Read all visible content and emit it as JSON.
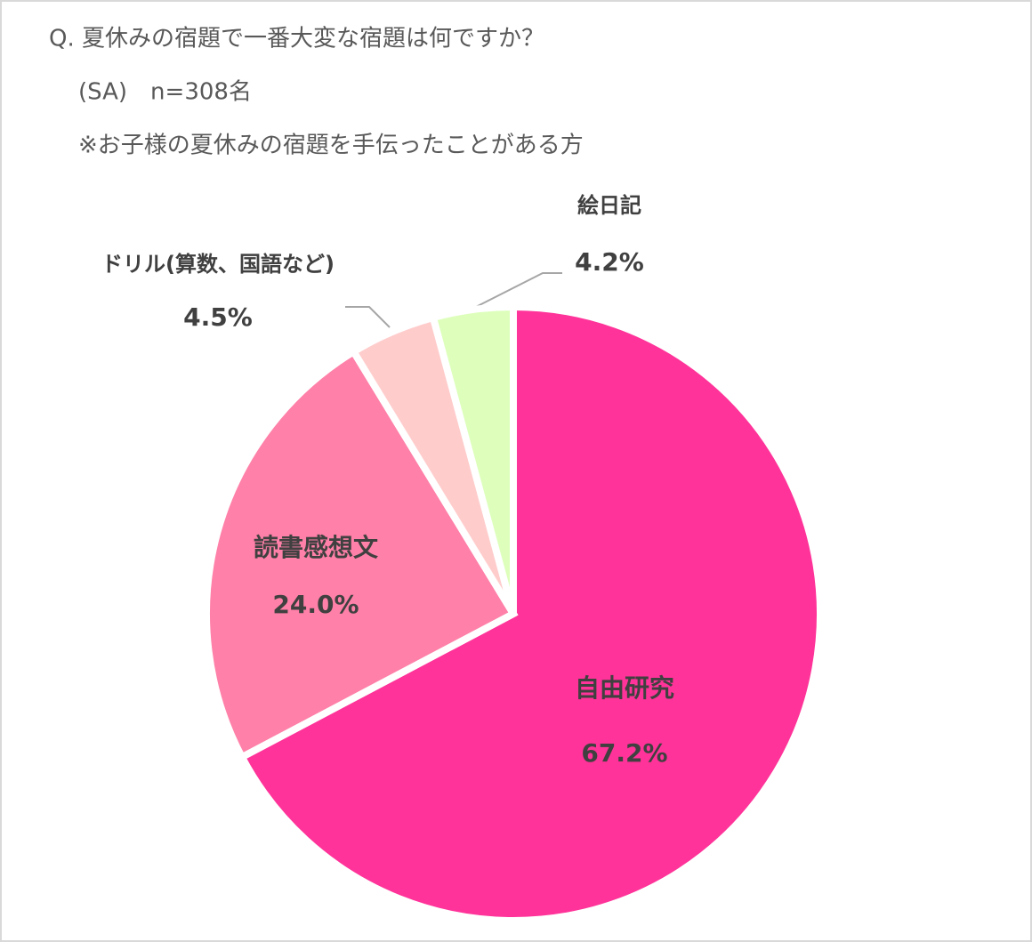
{
  "chart_data": {
    "type": "pie",
    "title": "Q. 夏休みの宿題で一番大変な宿題は何ですか？",
    "subtitle": "(SA)　n=308名",
    "note": "※お子様の夏休みの宿題を手伝ったことがある方",
    "categories": [
      "自由研究",
      "読書感想文",
      "ドリル(算数、国語など)",
      "絵日記"
    ],
    "values": [
      67.2,
      24.0,
      4.5,
      4.2
    ],
    "value_labels": [
      "67.2%",
      "24.0%",
      "4.5%",
      "4.2%"
    ],
    "colors": [
      "#ff3399",
      "#ff80a8",
      "#ffcccc",
      "#ddffbb"
    ]
  }
}
